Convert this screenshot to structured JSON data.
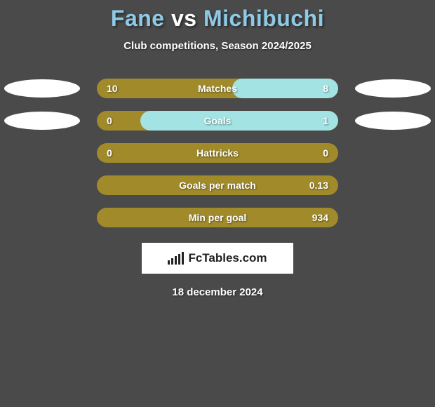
{
  "header": {
    "player1": "Fane",
    "vs": "vs",
    "player2": "Michibuchi"
  },
  "subtitle": "Club competitions, Season 2024/2025",
  "colors": {
    "bar_left": "#a08a2a",
    "bar_right": "#a3e3e3",
    "background": "#4a4a4a",
    "title_players": "#8ecae6",
    "title_vs": "#ffffff",
    "ellipse": "#ffffff"
  },
  "stats": [
    {
      "label": "Matches",
      "left_value": "10",
      "right_value": "8",
      "right_pct": 44,
      "show_ellipses": true
    },
    {
      "label": "Goals",
      "left_value": "0",
      "right_value": "1",
      "right_pct": 82,
      "show_ellipses": true
    },
    {
      "label": "Hattricks",
      "left_value": "0",
      "right_value": "0",
      "right_pct": 0,
      "show_ellipses": false
    },
    {
      "label": "Goals per match",
      "left_value": "",
      "right_value": "0.13",
      "right_pct": 0,
      "show_ellipses": false
    },
    {
      "label": "Min per goal",
      "left_value": "",
      "right_value": "934",
      "right_pct": 0,
      "show_ellipses": false
    }
  ],
  "logo": {
    "text": "FcTables.com"
  },
  "date": "18 december 2024"
}
